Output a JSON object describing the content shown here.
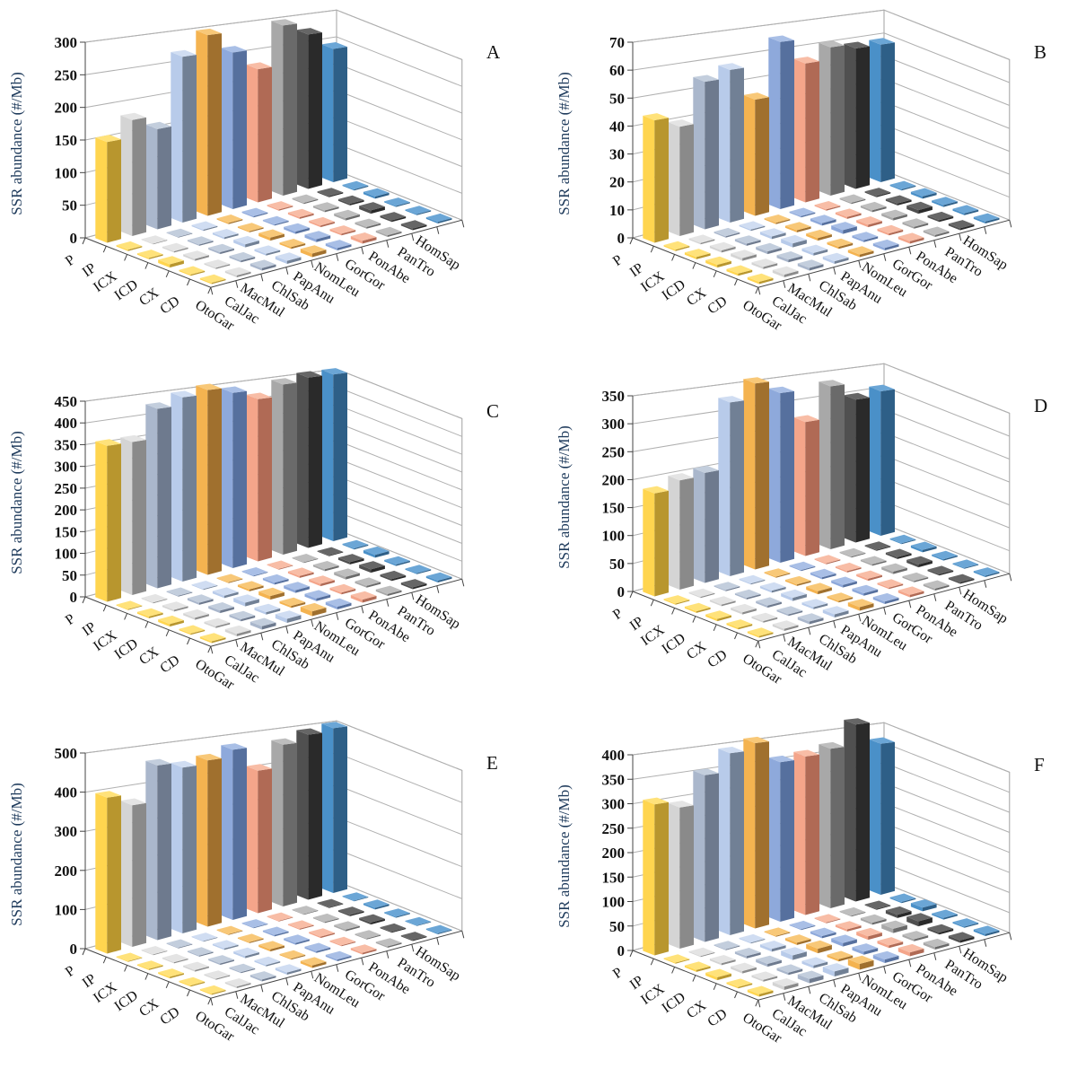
{
  "chart_data": [
    {
      "type": "bar3d",
      "panel": "A",
      "ylabel": "SSR abundance (#/Mb)",
      "ylim": [
        0,
        300
      ],
      "ticks": [
        0,
        50,
        100,
        150,
        200,
        250,
        300
      ],
      "rows": [
        "P",
        "IP",
        "ICX",
        "ICD",
        "CX",
        "CD"
      ],
      "species": [
        "OtoGar",
        "CalJac",
        "MacMul",
        "ChlSab",
        "PapAnu",
        "NomLeu",
        "GorGor",
        "PonAbe",
        "PanTro",
        "HomSap"
      ],
      "values": [
        [
          155,
          182,
          160,
          270,
          300,
          265,
          230,
          300,
          278,
          245
        ],
        [
          2,
          1,
          1,
          2,
          2,
          2,
          2,
          2,
          2,
          2
        ],
        [
          2,
          2,
          2,
          3,
          2,
          2,
          3,
          3,
          3,
          4
        ],
        [
          5,
          3,
          3,
          5,
          5,
          4,
          3,
          4,
          6,
          2
        ],
        [
          2,
          2,
          3,
          3,
          3,
          5,
          3,
          3,
          3,
          2
        ],
        [
          2,
          3,
          4,
          5,
          6,
          4,
          5,
          3,
          3,
          3
        ]
      ]
    },
    {
      "type": "bar3d",
      "panel": "B",
      "ylabel": "SSR abundance (#/Mb)",
      "ylim": [
        0,
        70
      ],
      "ticks": [
        0,
        10,
        20,
        30,
        40,
        50,
        60,
        70
      ],
      "rows": [
        "P",
        "IP",
        "ICX",
        "ICD",
        "CX",
        "CD"
      ],
      "species": [
        "OtoGar",
        "CalJac",
        "MacMul",
        "ChlSab",
        "PapAnu",
        "NomLeu",
        "GorGor",
        "PonAbe",
        "PanTro",
        "HomSap"
      ],
      "values": [
        [
          44,
          40,
          55,
          58,
          45,
          66,
          56,
          61,
          59,
          59
        ],
        [
          0.5,
          0.5,
          0.5,
          0.5,
          0.5,
          0.5,
          0.5,
          0.5,
          0.5,
          0.5
        ],
        [
          0.8,
          0.8,
          0.8,
          1,
          0.8,
          1,
          0.8,
          0.8,
          0.8,
          1
        ],
        [
          1,
          1,
          1,
          1.5,
          1,
          1.5,
          1,
          1,
          1.5,
          0.8
        ],
        [
          0.8,
          0.8,
          1,
          1,
          0.8,
          0.8,
          0.8,
          0.8,
          0.8,
          0.8
        ],
        [
          0.8,
          1,
          1,
          1,
          1,
          1,
          1,
          0.8,
          0.8,
          0.8
        ]
      ]
    },
    {
      "type": "bar3d",
      "panel": "C",
      "ylabel": "SSR abundance (#/Mb)",
      "ylim": [
        0,
        450
      ],
      "ticks": [
        0,
        50,
        100,
        150,
        200,
        250,
        300,
        350,
        400,
        450
      ],
      "rows": [
        "P",
        "IP",
        "ICX",
        "ICD",
        "CX",
        "CD"
      ],
      "species": [
        "OtoGar",
        "CalJac",
        "MacMul",
        "ChlSab",
        "PapAnu",
        "NomLeu",
        "GorGor",
        "PonAbe",
        "PanTro",
        "HomSap"
      ],
      "values": [
        [
          360,
          360,
          430,
          450,
          460,
          445,
          420,
          450,
          460,
          460
        ],
        [
          2,
          2,
          2,
          2,
          2,
          2,
          2,
          2,
          2,
          3
        ],
        [
          4,
          4,
          5,
          6,
          5,
          5,
          5,
          5,
          6,
          8
        ],
        [
          6,
          5,
          6,
          9,
          9,
          7,
          6,
          7,
          9,
          4
        ],
        [
          3,
          4,
          5,
          6,
          5,
          7,
          5,
          5,
          5,
          3
        ],
        [
          4,
          6,
          8,
          10,
          12,
          7,
          8,
          5,
          5,
          5
        ]
      ]
    },
    {
      "type": "bar3d",
      "panel": "D",
      "ylabel": "SSR abundance (#/Mb)",
      "ylim": [
        0,
        350
      ],
      "ticks": [
        0,
        50,
        100,
        150,
        200,
        250,
        300,
        350
      ],
      "rows": [
        "P",
        "IP",
        "ICX",
        "ICD",
        "CX",
        "CD"
      ],
      "species": [
        "OtoGar",
        "CalJac",
        "MacMul",
        "ChlSab",
        "PapAnu",
        "NomLeu",
        "GorGor",
        "PonAbe",
        "PanTro",
        "HomSap"
      ],
      "values": [
        [
          185,
          200,
          205,
          330,
          360,
          335,
          270,
          335,
          300,
          310
        ],
        [
          2,
          2,
          2,
          2,
          2,
          2,
          2,
          2,
          2,
          2
        ],
        [
          3,
          3,
          3,
          4,
          3,
          4,
          3,
          3,
          4,
          5
        ],
        [
          4,
          4,
          4,
          6,
          6,
          5,
          4,
          5,
          6,
          3
        ],
        [
          3,
          3,
          3,
          4,
          3,
          5,
          3,
          3,
          3,
          2
        ],
        [
          3,
          4,
          5,
          6,
          7,
          5,
          5,
          4,
          3,
          3
        ]
      ]
    },
    {
      "type": "bar3d",
      "panel": "E",
      "ylabel": "SSR abundance (#/Mb)",
      "ylim": [
        0,
        500
      ],
      "ticks": [
        0,
        100,
        200,
        300,
        400,
        500
      ],
      "rows": [
        "P",
        "IP",
        "ICX",
        "ICD",
        "CX",
        "CD"
      ],
      "species": [
        "OtoGar",
        "CalJac",
        "MacMul",
        "ChlSab",
        "PapAnu",
        "NomLeu",
        "GorGor",
        "PonAbe",
        "PanTro",
        "HomSap"
      ],
      "values": [
        [
          400,
          370,
          465,
          450,
          460,
          480,
          410,
          475,
          495,
          505
        ],
        [
          2,
          2,
          2,
          2,
          2,
          2,
          2,
          2,
          2,
          2
        ],
        [
          3,
          3,
          3,
          4,
          3,
          4,
          3,
          3,
          4,
          5
        ],
        [
          4,
          4,
          4,
          6,
          6,
          5,
          4,
          5,
          6,
          3
        ],
        [
          3,
          3,
          3,
          4,
          3,
          5,
          3,
          3,
          3,
          2
        ],
        [
          3,
          4,
          5,
          6,
          7,
          5,
          5,
          4,
          3,
          3
        ]
      ]
    },
    {
      "type": "bar3d",
      "panel": "F",
      "ylabel": "SSR abundance (#/Mb)",
      "ylim": [
        0,
        400
      ],
      "ticks": [
        0,
        50,
        100,
        150,
        200,
        250,
        300,
        350,
        400
      ],
      "rows": [
        "P",
        "IP",
        "ICX",
        "ICD",
        "CX",
        "CD"
      ],
      "species": [
        "OtoGar",
        "CalJac",
        "MacMul",
        "ChlSab",
        "PapAnu",
        "NomLeu",
        "GorGor",
        "PonAbe",
        "PanTro",
        "HomSap"
      ],
      "values": [
        [
          310,
          295,
          355,
          395,
          410,
          360,
          365,
          375,
          425,
          370
        ],
        [
          2,
          2,
          2,
          2,
          2,
          2,
          2,
          2,
          2,
          3
        ],
        [
          4,
          4,
          5,
          6,
          5,
          5,
          5,
          5,
          8,
          9
        ],
        [
          6,
          5,
          6,
          10,
          10,
          8,
          8,
          10,
          12,
          4
        ],
        [
          3,
          4,
          5,
          6,
          5,
          7,
          6,
          5,
          5,
          3
        ],
        [
          5,
          7,
          9,
          11,
          13,
          8,
          9,
          6,
          6,
          5
        ]
      ]
    }
  ],
  "colors": {
    "OtoGar": [
      "#FFD54F",
      "#B8962E",
      "#FFE27A"
    ],
    "CalJac": [
      "#D4D4D4",
      "#8A8A8A",
      "#E4E4E4"
    ],
    "MacMul": [
      "#AAB7CC",
      "#6E7A8E",
      "#C3CEDD"
    ],
    "ChlSab": [
      "#B8CBEA",
      "#718095",
      "#D0DDF2"
    ],
    "PapAnu": [
      "#F4B350",
      "#A0702E",
      "#F8C878"
    ],
    "NomLeu": [
      "#8EA9DB",
      "#56709E",
      "#A9BFE6"
    ],
    "GorGor": [
      "#F4A58A",
      "#B06A55",
      "#F8BDA6"
    ],
    "PonAbe": [
      "#A8A8A8",
      "#6A6A6A",
      "#BEBEBE"
    ],
    "PanTro": [
      "#505050",
      "#2A2A2A",
      "#666666"
    ],
    "HomSap": [
      "#4A90C8",
      "#2E5F87",
      "#6BA6D6"
    ]
  }
}
